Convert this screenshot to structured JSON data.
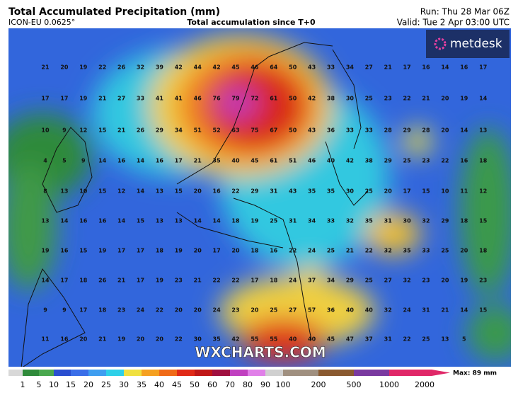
{
  "header": {
    "title": "Total Accumulated Precipitation (mm)",
    "model": "ICON-EU 0.0625°",
    "subtitle": "Total accumulation since T+0",
    "run": "Run: Thu 28 Mar 06Z",
    "valid": "Valid: Tue 2 Apr 03:00 UTC"
  },
  "brand": "metdesk",
  "watermark": "WXCHARTS.COM",
  "grid_values": [
    [
      21,
      20,
      19,
      22,
      26,
      32,
      39,
      42,
      44,
      42,
      45,
      46,
      64,
      50,
      43,
      33,
      34,
      27,
      21,
      17,
      16,
      14,
      16,
      17
    ],
    [
      17,
      17,
      19,
      21,
      27,
      33,
      41,
      41,
      46,
      76,
      79,
      72,
      61,
      50,
      42,
      38,
      30,
      25,
      23,
      22,
      21,
      20,
      19,
      14
    ],
    [
      10,
      9,
      12,
      15,
      21,
      26,
      29,
      34,
      51,
      52,
      63,
      75,
      67,
      50,
      43,
      36,
      33,
      33,
      28,
      29,
      28,
      20,
      14,
      13
    ],
    [
      4,
      5,
      9,
      14,
      16,
      14,
      16,
      17,
      21,
      35,
      40,
      45,
      61,
      51,
      46,
      40,
      42,
      38,
      29,
      25,
      23,
      22,
      16,
      18
    ],
    [
      8,
      13,
      10,
      15,
      12,
      14,
      13,
      15,
      20,
      16,
      22,
      29,
      31,
      43,
      35,
      35,
      30,
      25,
      20,
      17,
      15,
      10,
      11,
      12
    ],
    [
      13,
      14,
      16,
      16,
      14,
      15,
      13,
      13,
      14,
      14,
      18,
      19,
      25,
      31,
      34,
      33,
      32,
      35,
      31,
      30,
      32,
      29,
      18,
      15
    ],
    [
      19,
      16,
      15,
      19,
      17,
      17,
      18,
      19,
      20,
      17,
      20,
      18,
      16,
      22,
      24,
      25,
      21,
      22,
      32,
      35,
      33,
      25,
      20,
      18
    ],
    [
      14,
      17,
      18,
      26,
      21,
      17,
      19,
      23,
      21,
      22,
      22,
      17,
      18,
      24,
      37,
      34,
      29,
      25,
      27,
      32,
      23,
      20,
      19,
      23
    ],
    [
      9,
      9,
      17,
      18,
      23,
      24,
      22,
      20,
      20,
      24,
      23,
      20,
      25,
      27,
      57,
      36,
      40,
      40,
      32,
      24,
      31,
      21,
      14,
      15
    ],
    [
      11,
      16,
      20,
      21,
      19,
      20,
      20,
      22,
      30,
      35,
      42,
      55,
      55,
      40,
      40,
      45,
      47,
      37,
      31,
      22,
      25,
      13,
      5,
      null
    ]
  ],
  "colorbar": {
    "ticks": [
      1,
      5,
      10,
      15,
      20,
      25,
      30,
      35,
      40,
      45,
      50,
      60,
      70,
      80,
      90,
      100,
      200,
      500,
      1000,
      2000
    ],
    "colors": [
      "#d8d8d8",
      "#2f8a3a",
      "#4aa84e",
      "#2a4fd0",
      "#3a6ee8",
      "#3f9ef0",
      "#2ed0e8",
      "#f0e040",
      "#f5a020",
      "#f06a18",
      "#e02a18",
      "#c01818",
      "#a01040",
      "#c040c0",
      "#e080e8",
      "#d0d0d0",
      "#a09080",
      "#8a5a30",
      "#7a3aa0",
      "#e02868"
    ],
    "max_label": "Max: 89 mm"
  }
}
